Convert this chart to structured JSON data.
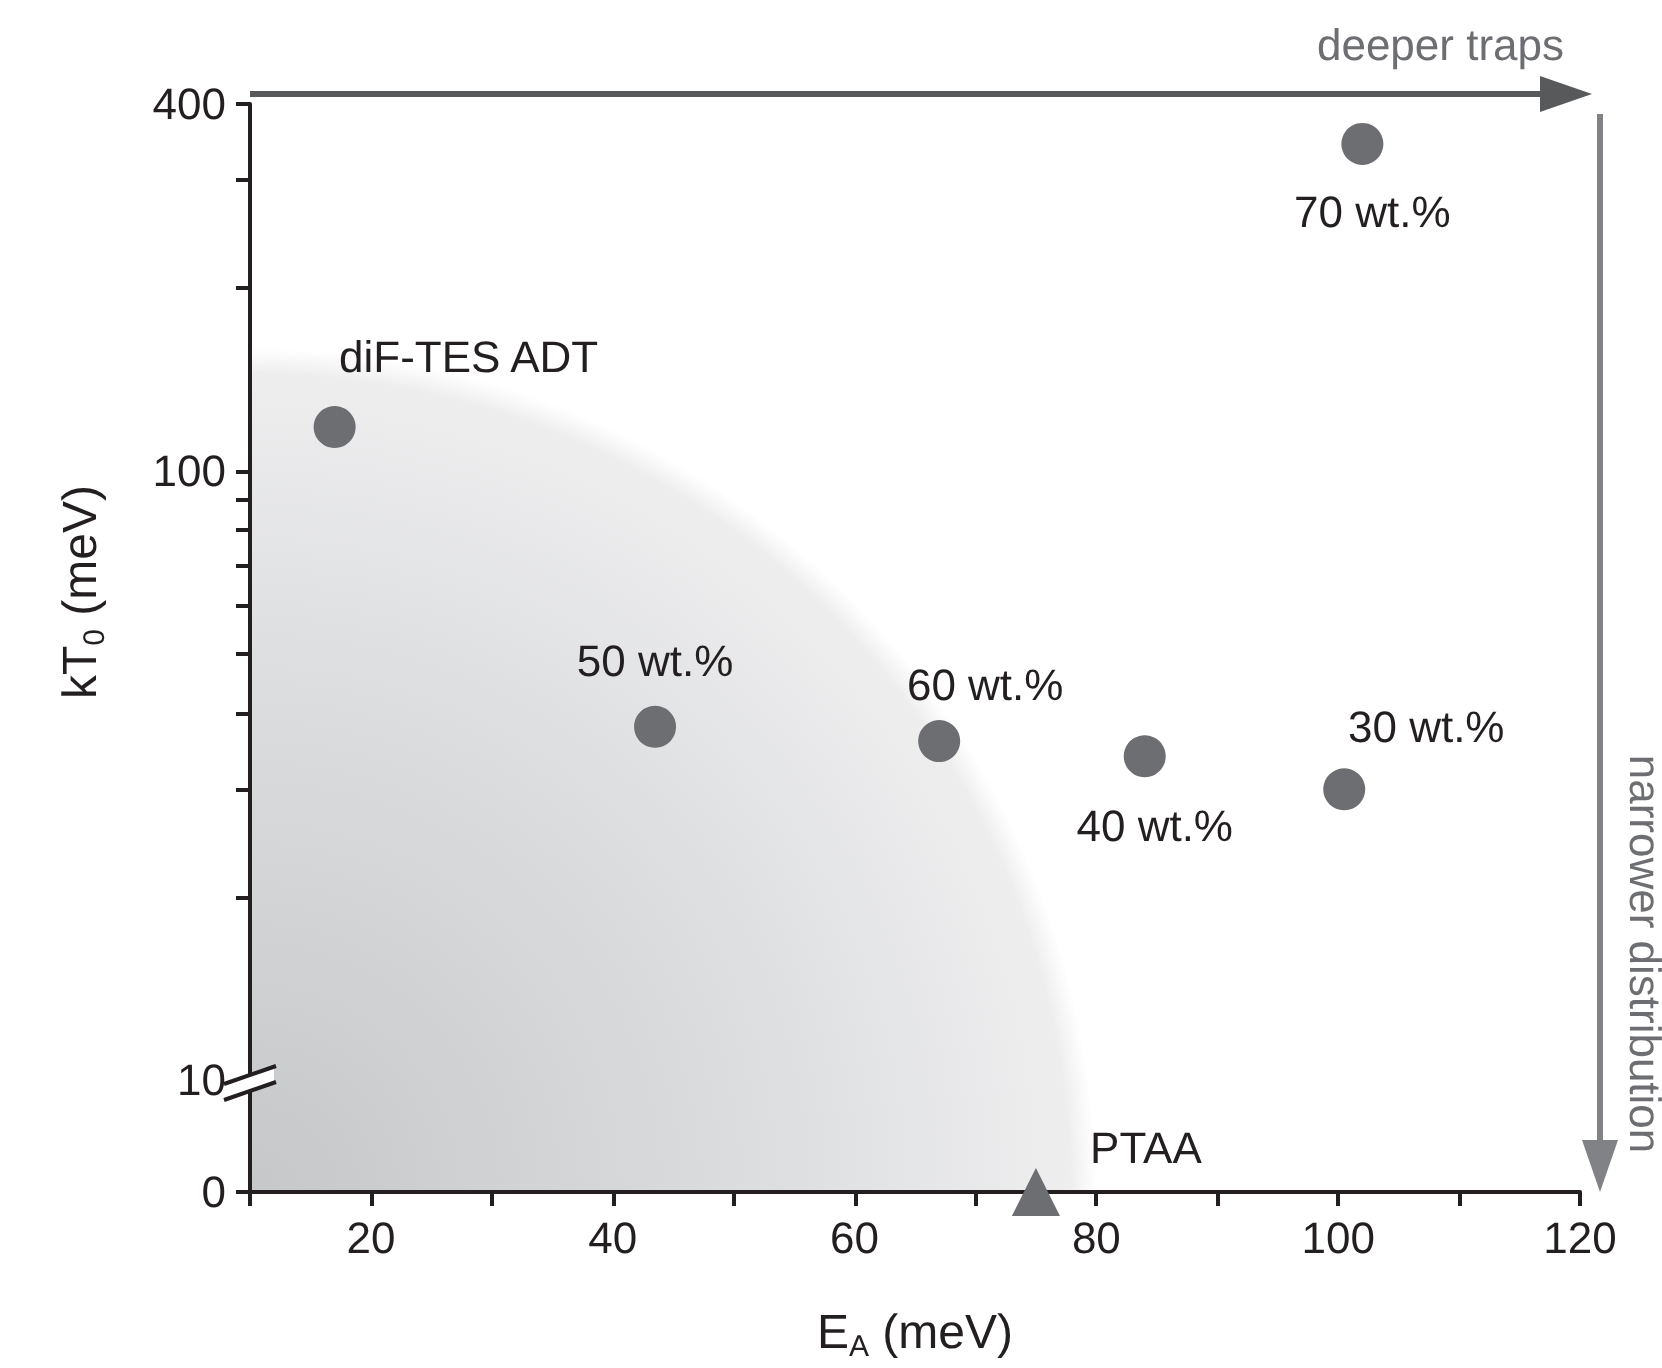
{
  "chart_data": [
    {
      "type": "scatter",
      "ylabel": "kT$_{0}$ (meV)",
      "x": [
        17,
        102,
        43.5,
        67,
        84,
        100.5
      ],
      "values": [
        118,
        344,
        38,
        36,
        34,
        30
      ],
      "color": "#6d6e71",
      "marker": "circle",
      "xlim": [
        10,
        120
      ],
      "ylim": [
        10,
        400
      ],
      "log": "y",
      "tick_labels": "y",
      "yticks": [
        {
          "value": 20,
          "label": null
        },
        {
          "value": 30,
          "label": null
        },
        {
          "value": 40,
          "label": null
        },
        {
          "value": 50,
          "label": null
        },
        {
          "value": 60,
          "label": null
        },
        {
          "value": 70,
          "label": null
        },
        {
          "value": 80,
          "label": null
        },
        {
          "value": 90,
          "label": null
        },
        100,
        {
          "value": 200,
          "label": null
        },
        {
          "value": 300,
          "label": null
        },
        400
      ],
      "annotations": [
        {
          "text": "diF-TES ADT",
          "x": 17,
          "y": 118
        },
        {
          "text": "70 wt.%",
          "x": 102,
          "y": 344
        },
        {
          "text": "50 wt.%",
          "x": 43.5,
          "y": 38
        },
        {
          "text": "60 wt.%",
          "x": 67,
          "y": 36
        },
        {
          "text": "40 wt.%",
          "x": 84,
          "y": 34
        },
        {
          "text": "30 wt.%",
          "x": 100.5,
          "y": 30
        },
        "deeper traps",
        "narrower distribution"
      ]
    },
    {
      "type": "scatter",
      "xlabel": "E$_{A}$ (meV)",
      "x": [
        75
      ],
      "values": [
        0
      ],
      "color": "#6d6e71",
      "marker": "triangle",
      "xlim": [
        10,
        120
      ],
      "ylim": [
        0,
        10
      ],
      "yticks": [
        0,
        10
      ],
      "xticks": [
        {
          "value": 10,
          "label": null
        },
        20,
        {
          "value": 30,
          "label": null
        },
        40,
        {
          "value": 50,
          "label": null
        },
        60,
        {
          "value": 70,
          "label": null
        },
        80,
        {
          "value": 90,
          "label": null
        },
        100,
        {
          "value": 110,
          "label": null
        },
        120
      ],
      "annotations": [
        {
          "text": "PTAA",
          "x": 75,
          "y": 0
        }
      ]
    }
  ]
}
